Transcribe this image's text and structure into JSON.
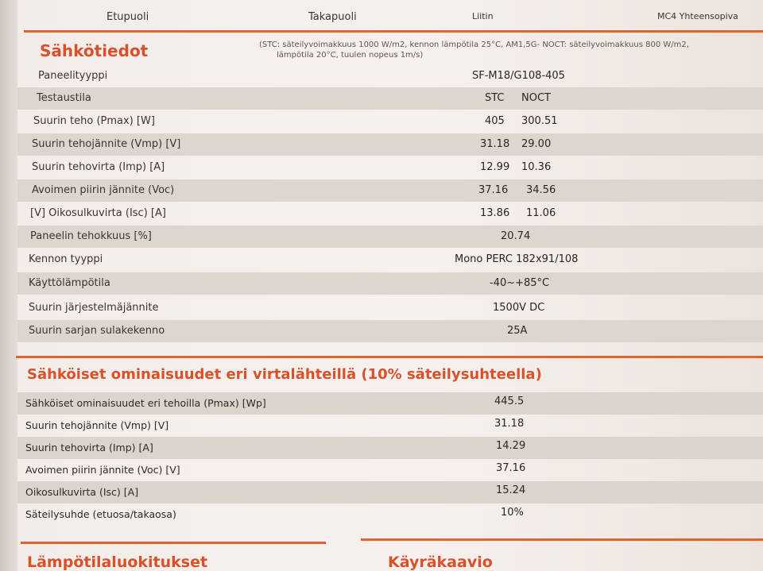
{
  "header": {
    "tabs": [
      "Etupuoli",
      "Takapuoli",
      "Liitin",
      "MC4 Yhteensopiva"
    ]
  },
  "electrical": {
    "title": "Sähkötiedot",
    "note_line1": "(STC: säteilyvoimakkuus 1000 W/m2, kennon lämpötila 25°C, AM1,5G- NOCT: säteilyvoimakkuus 800 W/m2,",
    "note_line2": "lämpötila 20°C, tuulen nopeus 1m/s)",
    "rows": [
      {
        "label": "Paneelityyppi",
        "value": "SF-M18/G108-405"
      },
      {
        "label": "Testaustila",
        "stc": "STC",
        "noct": "NOCT"
      },
      {
        "label": "Suurin teho  (Pmax) [W]",
        "stc": "405",
        "noct": "300.51"
      },
      {
        "label": "Suurin tehojännite (Vmp) [V]",
        "stc": "31.18",
        "noct": "29.00"
      },
      {
        "label": "Suurin tehovirta (Imp) [A]",
        "stc": "12.99",
        "noct": "10.36"
      },
      {
        "label": "Avoimen piirin jännite (Voc)",
        "stc": "37.16",
        "noct": "34.56"
      },
      {
        "label": "[V] Oikosulkuvirta (Isc) [A]",
        "stc": "13.86",
        "noct": "11.06"
      },
      {
        "label": "Paneelin tehokkuus [%]",
        "value": "20.74"
      },
      {
        "label": "Kennon tyyppi",
        "value": "Mono PERC 182x91/108"
      },
      {
        "label": "Käyttölämpötila",
        "value": "-40~+85°C"
      },
      {
        "label": "Suurin järjestelmäjännite",
        "value": "1500V DC"
      },
      {
        "label": "Suurin sarjan sulakekenno",
        "value": "25A"
      }
    ]
  },
  "bifacial": {
    "title": "Sähköiset ominaisuudet eri virtalähteillä (10% säteilysuhteella)",
    "rows": [
      {
        "label": "Sähköiset ominaisuudet eri tehoilla  (Pmax) [Wp]",
        "value": "445.5"
      },
      {
        "label": "Suurin tehojännite (Vmp) [V]",
        "value": "31.18"
      },
      {
        "label": "Suurin tehovirta (Imp) [A]",
        "value": "14.29"
      },
      {
        "label": "Avoimen piirin jännite (Voc) [V]",
        "value": "37.16"
      },
      {
        "label": "Oikosulkuvirta (Isc) [A]",
        "value": "15.24"
      },
      {
        "label": "Säteilysuhde (etuosa/takaosa)",
        "value": "10%"
      }
    ]
  },
  "bottom": {
    "left_title": "Lämpötilaluokitukset",
    "right_title": "Käyräkaavio"
  }
}
